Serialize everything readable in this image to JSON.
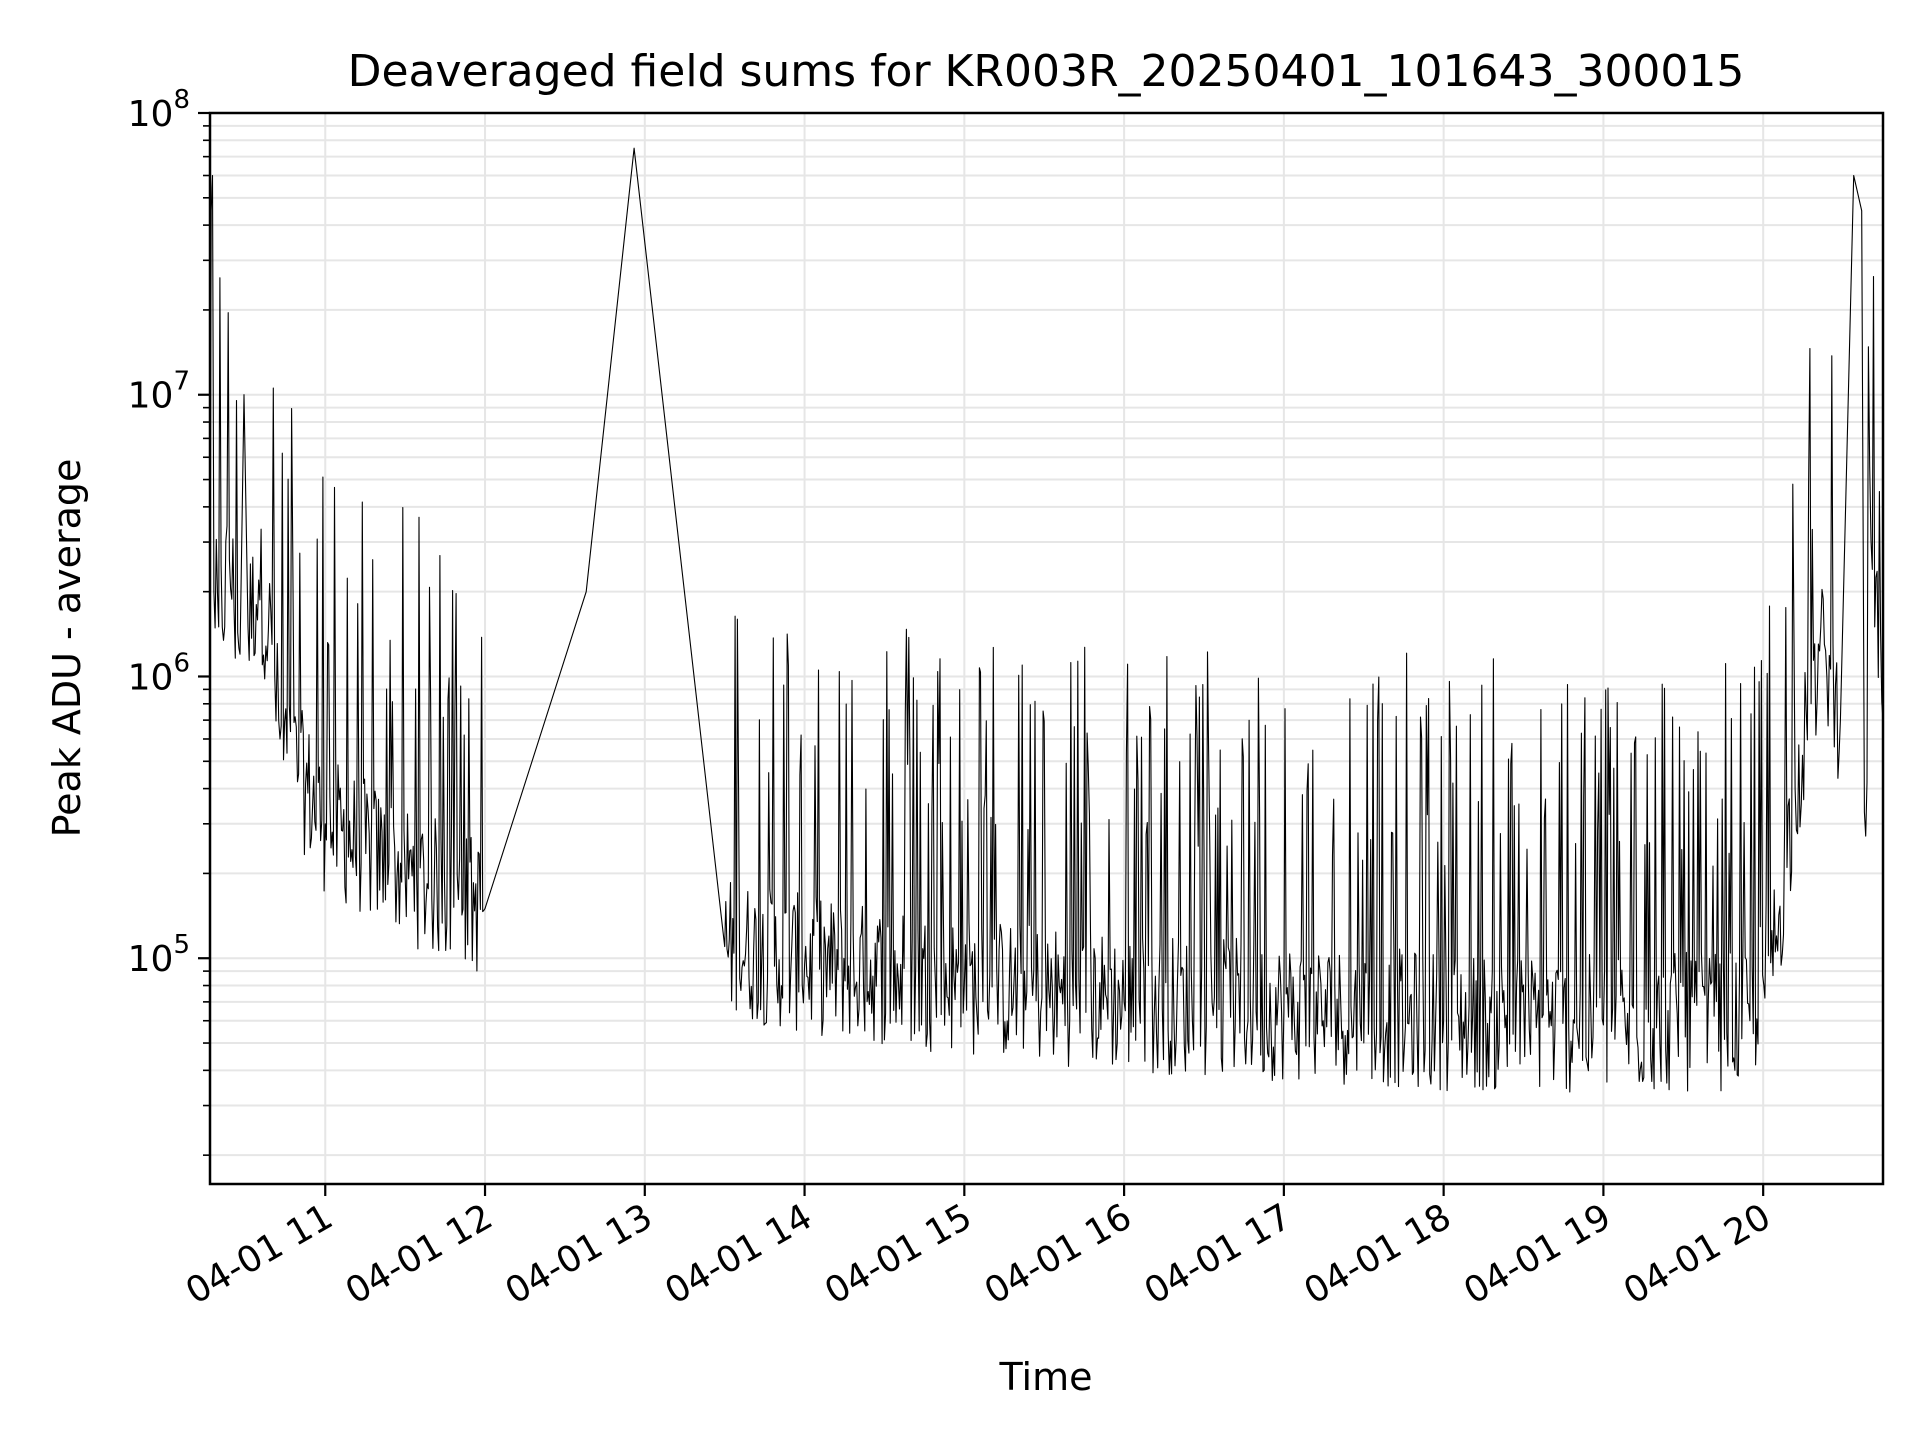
{
  "chart_data": {
    "type": "line",
    "title": "Deaveraged field sums for KR003R_20250401_101643_300015",
    "xlabel": "Time",
    "ylabel": "Peak ADU - average",
    "xlim": [
      "2025-04-01 10:16:43",
      "2025-04-01 20:45:00"
    ],
    "ylim": [
      15800,
      100000000
    ],
    "yscale": "log",
    "grid": true,
    "grid_minor": true,
    "line_color": "#000000",
    "x_ticks": [
      {
        "value": "2025-04-01 11:00",
        "label": "04-01 11"
      },
      {
        "value": "2025-04-01 12:00",
        "label": "04-01 12"
      },
      {
        "value": "2025-04-01 13:00",
        "label": "04-01 13"
      },
      {
        "value": "2025-04-01 14:00",
        "label": "04-01 14"
      },
      {
        "value": "2025-04-01 15:00",
        "label": "04-01 15"
      },
      {
        "value": "2025-04-01 16:00",
        "label": "04-01 16"
      },
      {
        "value": "2025-04-01 17:00",
        "label": "04-01 17"
      },
      {
        "value": "2025-04-01 18:00",
        "label": "04-01 18"
      },
      {
        "value": "2025-04-01 19:00",
        "label": "04-01 19"
      },
      {
        "value": "2025-04-01 20:00",
        "label": "04-01 20"
      }
    ],
    "y_ticks": [
      {
        "value": 100000,
        "base": "10",
        "exp": "5"
      },
      {
        "value": 1000000,
        "base": "10",
        "exp": "6"
      },
      {
        "value": 10000000,
        "base": "10",
        "exp": "7"
      },
      {
        "value": 100000000,
        "base": "10",
        "exp": "8"
      }
    ],
    "series": [
      {
        "points": [
          [
            "2025-04-01 10:16:43",
            1200000
          ],
          [
            "2025-04-01 10:17:10",
            45000000
          ],
          [
            "2025-04-01 10:17:40",
            60000000
          ],
          [
            "2025-04-01 10:18:10",
            2000000
          ],
          [
            "2025-04-01 10:20:00",
            1500000
          ],
          [
            "2025-04-01 10:24:00",
            2600000
          ],
          [
            "2025-04-01 10:28:00",
            1200000
          ],
          [
            "2025-04-01 10:29:30",
            10000000
          ],
          [
            "2025-04-01 10:31:00",
            1500000
          ],
          [
            "2025-04-01 10:35:00",
            2200000
          ],
          [
            "2025-04-01 10:40:00",
            1300000
          ],
          [
            "2025-04-01 10:43:00",
            600000
          ],
          [
            "2025-04-01 10:50:00",
            450000
          ],
          [
            "2025-04-01 11:00:00",
            300000
          ],
          [
            "2025-04-01 11:30:00",
            200000
          ],
          [
            "2025-04-01 12:00:00",
            150000
          ],
          [
            "2025-04-01 12:38:00",
            2000000
          ],
          [
            "2025-04-01 12:56:00",
            75000000
          ],
          [
            "2025-04-01 13:30:00",
            110000
          ],
          [
            "2025-04-01 14:00:00",
            95000
          ],
          [
            "2025-04-01 15:00:00",
            80000
          ],
          [
            "2025-04-01 16:00:00",
            70000
          ],
          [
            "2025-04-01 17:00:00",
            65000
          ],
          [
            "2025-04-01 18:00:00",
            60000
          ],
          [
            "2025-04-01 19:00:00",
            58000
          ],
          [
            "2025-04-01 19:55:00",
            60000
          ],
          [
            "2025-04-01 20:05:00",
            120000
          ],
          [
            "2025-04-01 20:12:00",
            400000
          ],
          [
            "2025-04-01 20:18:00",
            800000
          ],
          [
            "2025-04-01 20:23:00",
            1300000
          ],
          [
            "2025-04-01 20:29:00",
            700000
          ],
          [
            "2025-04-01 20:34:00",
            60000000
          ],
          [
            "2025-04-01 20:37:00",
            45000000
          ],
          [
            "2025-04-01 20:38:00",
            330000
          ],
          [
            "2025-04-01 20:41:00",
            2400000
          ],
          [
            "2025-04-01 20:45:00",
            700000
          ]
        ]
      }
    ]
  }
}
